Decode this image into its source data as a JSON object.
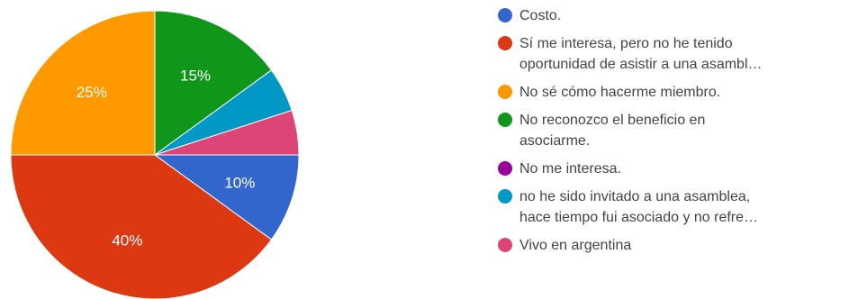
{
  "chart_data": {
    "type": "pie",
    "slices": [
      {
        "name": "Costo.",
        "value": 10,
        "label": "10%",
        "color": "#3366cc"
      },
      {
        "name": "Sí me interesa, pero no he tenido oportunidad de asistir a una asambl…",
        "value": 40,
        "label": "40%",
        "color": "#dc3912"
      },
      {
        "name": "No sé cómo hacerme miembro.",
        "value": 25,
        "label": "25%",
        "color": "#ff9900"
      },
      {
        "name": "No reconozco el beneficio en asociarme.",
        "value": 15,
        "label": "15%",
        "color": "#109618"
      },
      {
        "name": "No me interesa.",
        "value": 0,
        "label": "",
        "color": "#990099"
      },
      {
        "name": "no he sido invitado a una asamblea, hace tiempo fui asociado y no refre…",
        "value": 5,
        "label": "",
        "color": "#0099c6"
      },
      {
        "name": "Vivo en argentina",
        "value": 5,
        "label": "",
        "color": "#dd4477"
      }
    ],
    "legend": {
      "position": "right",
      "items": [
        {
          "lines": [
            "Costo."
          ],
          "color": "#3366cc"
        },
        {
          "lines": [
            "Sí me interesa, pero no he tenido",
            "oportunidad de asistir a una asambl…"
          ],
          "color": "#dc3912"
        },
        {
          "lines": [
            "No sé cómo hacerme miembro."
          ],
          "color": "#ff9900"
        },
        {
          "lines": [
            "No reconozco el beneficio en",
            "asociarme."
          ],
          "color": "#109618"
        },
        {
          "lines": [
            "No me interesa."
          ],
          "color": "#990099"
        },
        {
          "lines": [
            "no he sido invitado a una asamblea,",
            "hace tiempo fui asociado y no refre…"
          ],
          "color": "#0099c6"
        },
        {
          "lines": [
            "Vivo en argentina"
          ],
          "color": "#dd4477"
        }
      ]
    }
  }
}
